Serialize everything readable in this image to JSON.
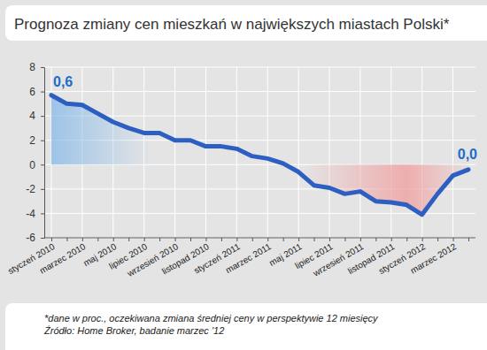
{
  "chart_data": {
    "type": "line",
    "title": "Prognoza zmiany cen mieszkań w największych miastach Polski*",
    "categories": [
      "styczeń 2010",
      null,
      "marzec 2010",
      null,
      "maj 2010",
      null,
      "lipiec 2010",
      null,
      "wrzesień 2010",
      null,
      "listopad 2010",
      null,
      "styczeń 2011",
      null,
      "marzec 2011",
      null,
      "maj 2011",
      null,
      "lipiec 2011",
      null,
      "wrzesień 2011",
      null,
      "listopad 2011",
      null,
      "styczeń 2012",
      null,
      "marzec 2012",
      null
    ],
    "values": [
      5.7,
      5.0,
      4.9,
      4.2,
      3.5,
      3.0,
      2.6,
      2.6,
      2.0,
      2.0,
      1.5,
      1.5,
      1.3,
      0.7,
      0.5,
      0.1,
      -0.6,
      -1.7,
      -1.9,
      -2.4,
      -2.2,
      -3.0,
      -3.1,
      -3.3,
      -4.1,
      -2.4,
      -0.9,
      -0.4
    ],
    "color": "#2d5fc2",
    "ylim": [
      -6,
      8
    ],
    "yticks": [
      -6,
      -4,
      -2,
      0,
      2,
      4,
      6,
      8
    ],
    "grid": true,
    "annotations": [
      "0,6",
      "0,0"
    ],
    "notes": [
      "*dane w proc., oczekiwana zmiana średniej ceny w perspektywie 12 miesięcy",
      "Źródło: Home Broker, badanie marzec '12"
    ]
  }
}
